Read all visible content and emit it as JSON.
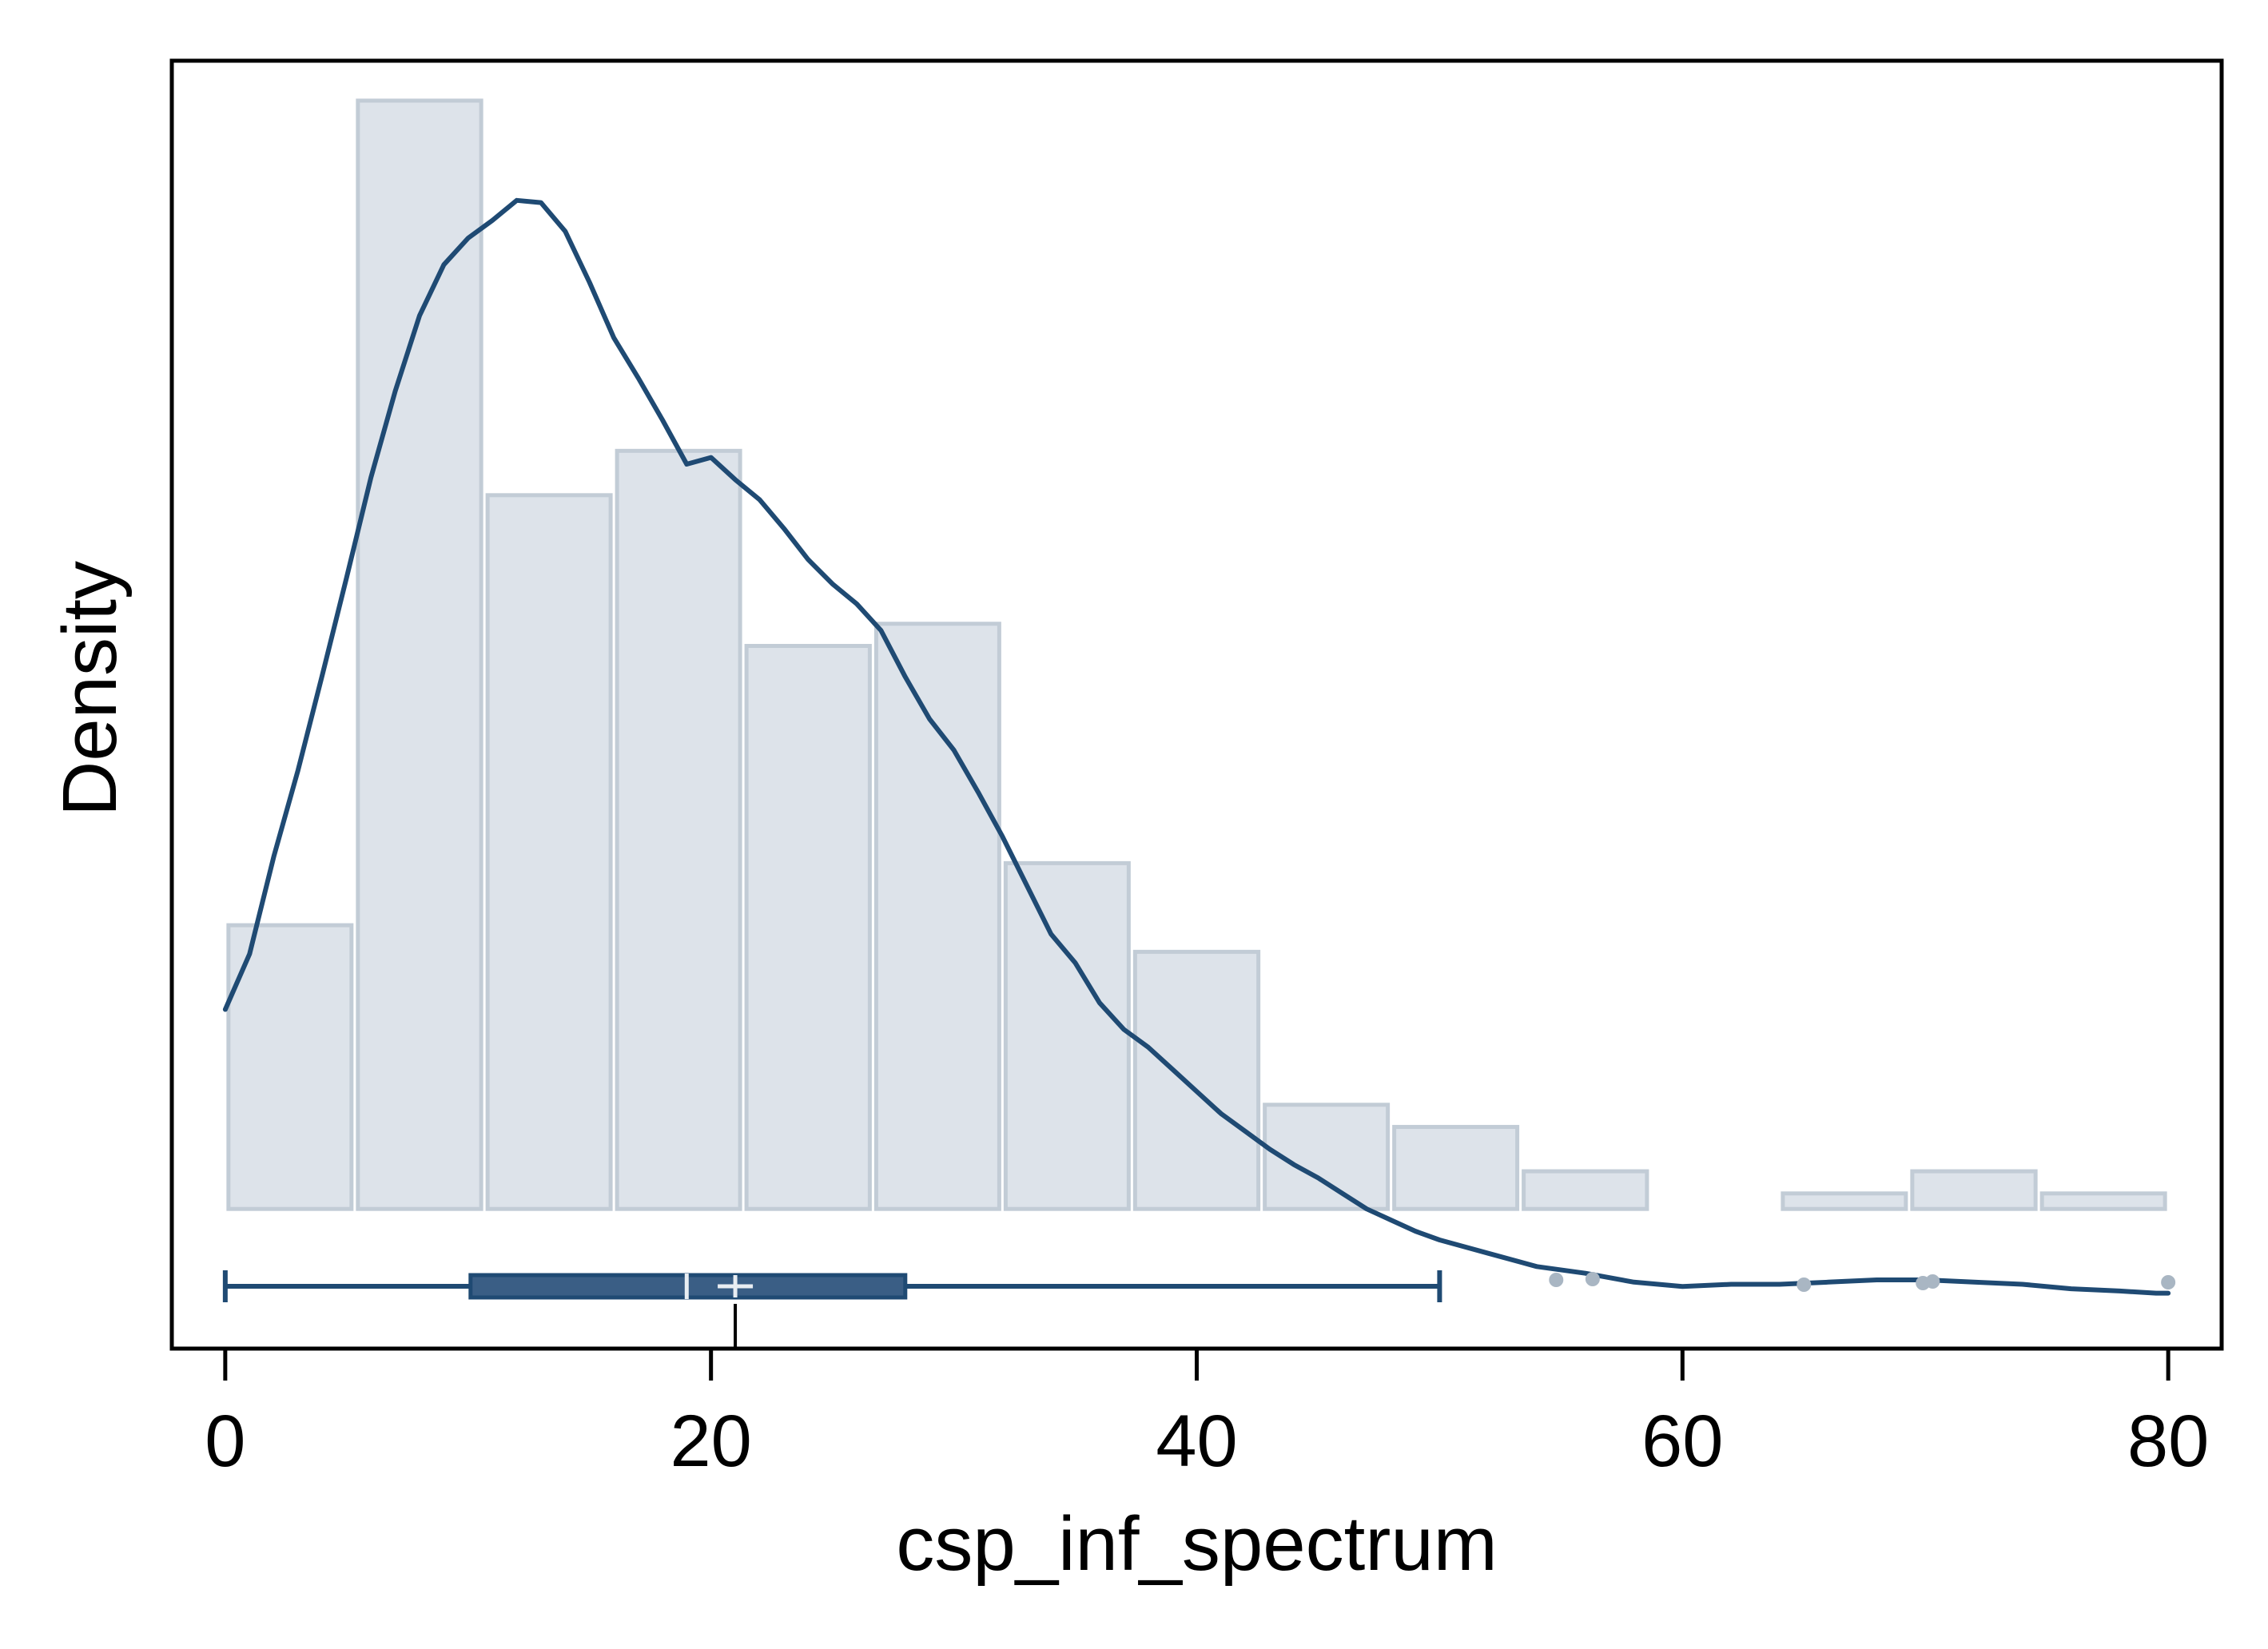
{
  "chart_data": {
    "type": "histogram",
    "title": "",
    "xlabel": "csp_inf_spectrum",
    "ylabel": "Density",
    "xlim": [
      -2.2,
      82.2
    ],
    "ylim": [
      -0.0063,
      0.0518
    ],
    "xticks": [
      0,
      20,
      40,
      60,
      80
    ],
    "yticks_shown": false,
    "grid": false,
    "histogram": {
      "bin_edges": [
        0,
        5.33,
        10.67,
        16,
        21.33,
        26.67,
        32,
        37.33,
        42.67,
        48,
        53.33,
        58.67,
        64,
        69.33,
        74.67,
        80
      ],
      "density": [
        0.0128,
        0.05,
        0.0322,
        0.0342,
        0.0254,
        0.0264,
        0.0156,
        0.0116,
        0.0047,
        0.0037,
        0.0017,
        0.0,
        0.0007,
        0.0017,
        0.0007
      ]
    },
    "kde": {
      "x": [
        0,
        1,
        2,
        3,
        4,
        5,
        6,
        7,
        8,
        9,
        10,
        11,
        12,
        13,
        14,
        15,
        16,
        17,
        18,
        19,
        20,
        21,
        22,
        23,
        24,
        25,
        26,
        27,
        28,
        29,
        30,
        31,
        32,
        33,
        34,
        35,
        36,
        37,
        38,
        39,
        40,
        41,
        42,
        43,
        44,
        45,
        46,
        47,
        48,
        49,
        50,
        52,
        54,
        56,
        58,
        60,
        62,
        64,
        66,
        68,
        70,
        72,
        74,
        76,
        78,
        79.5,
        80
      ],
      "y": [
        0.009,
        0.0115,
        0.0159,
        0.0198,
        0.0241,
        0.0285,
        0.033,
        0.0369,
        0.0403,
        0.0426,
        0.0438,
        0.0446,
        0.0455,
        0.0454,
        0.0441,
        0.0418,
        0.0393,
        0.0375,
        0.0356,
        0.0336,
        0.0339,
        0.0329,
        0.032,
        0.0307,
        0.0293,
        0.0282,
        0.0273,
        0.0261,
        0.024,
        0.0221,
        0.0207,
        0.0188,
        0.0168,
        0.0146,
        0.0124,
        0.0111,
        0.0093,
        0.0081,
        0.0073,
        0.0063,
        0.0053,
        0.0043,
        0.0035,
        0.0027,
        0.002,
        0.0014,
        0.0007,
        0.0,
        -0.0005,
        -0.001,
        -0.0014,
        -0.002,
        -0.0026,
        -0.0029,
        -0.0033,
        -0.0035,
        -0.0034,
        -0.0034,
        -0.0033,
        -0.0032,
        -0.0032,
        -0.0033,
        -0.0034,
        -0.0036,
        -0.0037,
        -0.0038,
        -0.0038
      ]
    },
    "boxplot": {
      "whisker_low": 0,
      "q1": 10.1,
      "median": 19,
      "mean": 21,
      "q3": 28,
      "whisker_high": 50,
      "outliers": [
        54.8,
        56.3,
        65,
        69.9,
        70.3,
        80
      ]
    },
    "colors": {
      "bar_fill": "#dde3ea",
      "bar_stroke": "#c2ccd6",
      "kde_line": "#1f4a73",
      "box": "#1f4a73",
      "box_fill": "#3a5e85",
      "outlier": "#a9b6c3",
      "frame": "#000000"
    }
  }
}
